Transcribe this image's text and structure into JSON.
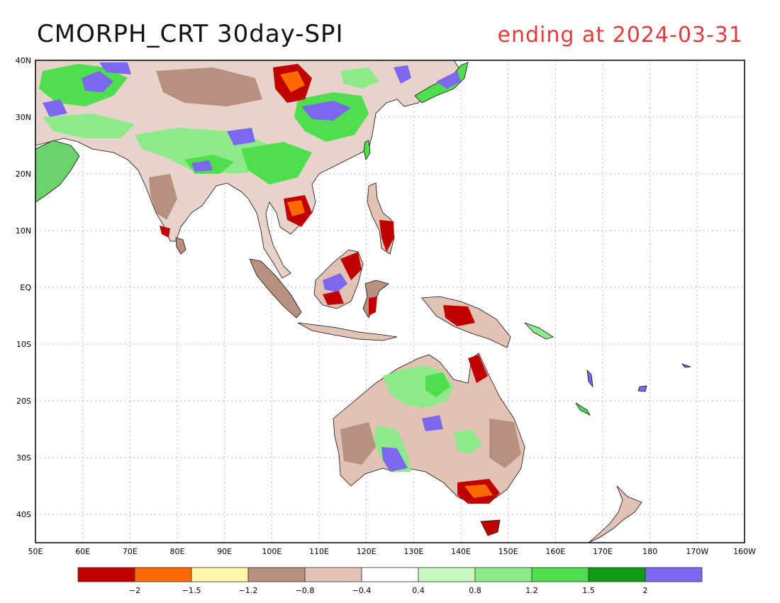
{
  "title": {
    "left": "CMORPH_CRT 30day-SPI",
    "right": "ending at 2024-03-31",
    "right_color": "#e03c3c"
  },
  "map": {
    "lon_labels": [
      "50E",
      "60E",
      "70E",
      "80E",
      "90E",
      "100E",
      "110E",
      "120E",
      "130E",
      "140E",
      "150E",
      "160E",
      "170E",
      "180",
      "170W",
      "160W"
    ],
    "lat_labels": [
      "40N",
      "30N",
      "20N",
      "10N",
      "EQ",
      "10S",
      "20S",
      "30S",
      "40S"
    ],
    "grid": true
  },
  "colorbar": {
    "colors": [
      "#c00000",
      "#ff6a00",
      "#fff8a8",
      "#b8907f",
      "#e2c2b5",
      "#ffffff",
      "#c8f7c0",
      "#8cea8a",
      "#4ede4e",
      "#139a13",
      "#7b68ee"
    ],
    "labels": [
      "−2",
      "−1.5",
      "−1.2",
      "−0.8",
      "−0.4",
      "0.4",
      "0.8",
      "1.2",
      "1.5",
      "2"
    ]
  }
}
